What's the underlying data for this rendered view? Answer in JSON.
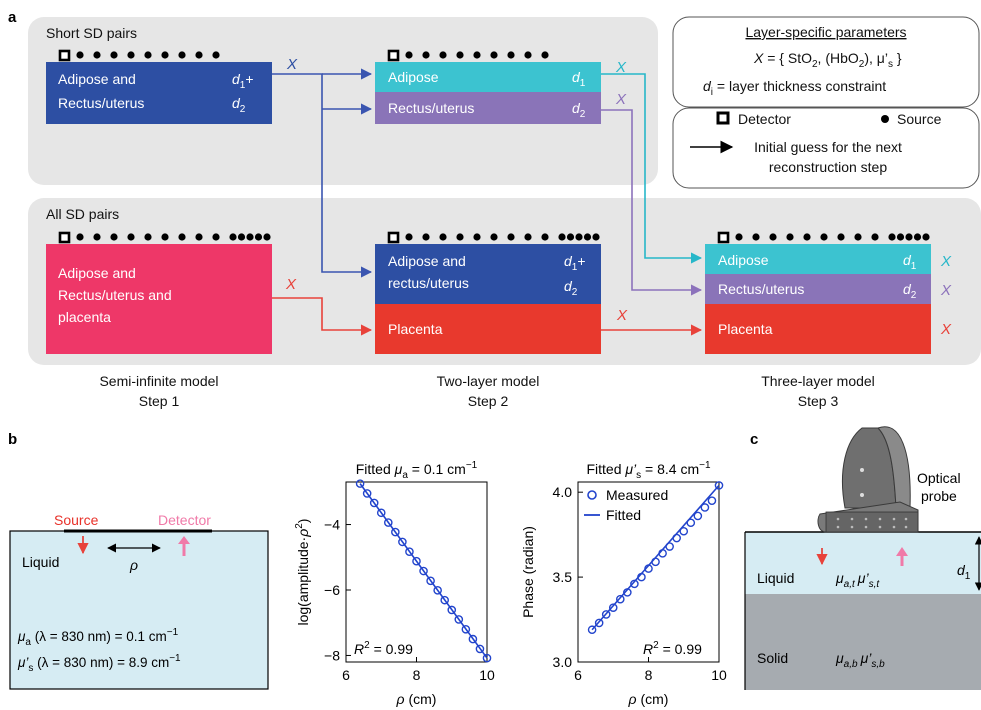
{
  "panel_a": {
    "label": "a",
    "short_group": "Short SD pairs",
    "all_group": "All SD pairs",
    "legend": {
      "title": "Layer-specific parameters",
      "x_label": "X",
      "x_eq": " = { StO",
      "x_mid": ", (HbO",
      "x_mid2": "), μ’",
      "x_end": " }",
      "sub2": "2",
      "sub_s": "s",
      "d_label": "d",
      "d_sub": "i",
      "d_eq": " =  layer thickness constraint",
      "detector": "Detector",
      "source": "Source",
      "arrow_line1": "Initial guess for the next",
      "arrow_line2": "reconstruction step"
    },
    "blocks": {
      "short_semi_line1": "Adipose and",
      "short_semi_line2": "Rectus/uterus",
      "d1": "d",
      "sub1": "1",
      "sub2": "2",
      "plus": "+",
      "adipose": "Adipose",
      "rectus": "Rectus/uterus",
      "semi_line1": "Adipose and",
      "semi_line2": "Rectus/uterus and",
      "semi_line3": "placenta",
      "two_line1": "Adipose and",
      "two_line2": "rectus/uterus",
      "placenta": "Placenta",
      "x": "X"
    },
    "captions": {
      "semi1": "Semi-infinite model",
      "semi2": "Step 1",
      "two1": "Two-layer model",
      "two2": "Step 2",
      "three1": "Three-layer model",
      "three2": "Step 3"
    }
  },
  "panel_b": {
    "label": "b",
    "source": "Source",
    "detector": "Detector",
    "liquid": "Liquid",
    "rho": "ρ",
    "mua_line": "μ",
    "mua_sub": "a",
    "mua_rest": " (λ = 830 nm) = 0.1 cm",
    "mus_line": "μ’",
    "mus_sub": "s",
    "mus_rest": " (λ = 830 nm) = 8.9 cm",
    "inv": "−1",
    "colors": {
      "source": "#e8322a",
      "detector": "#f07aa8",
      "liquid": "#d6ecf3",
      "series": "#2244cc"
    }
  },
  "chart_data": [
    {
      "type": "scatter",
      "title": "Fitted μa = 0.1 cm−1",
      "title_pre": "Fitted ",
      "title_mu": "μ",
      "title_sub": "a",
      "title_post": " = 0.1 cm",
      "title_sup": "−1",
      "xlabel": "ρ (cm)",
      "ylabel": "log(amplitude·ρ²)",
      "ylabel_pre": "log(amplitude·",
      "ylabel_rho": "ρ",
      "ylabel_sup": "2",
      "ylabel_post": ")",
      "xlim": [
        6,
        10
      ],
      "ylim": [
        -8.2,
        -2.7
      ],
      "xticks": [
        6,
        8,
        10
      ],
      "yticks": [
        -8,
        -6,
        -4
      ],
      "xtick_labels": [
        "6",
        "8",
        "10"
      ],
      "ytick_labels": [
        "−8",
        "−6",
        "−4"
      ],
      "annotation": "R² = 0.99",
      "ann_pre": "R",
      "ann_sup": "2",
      "ann_post": " = 0.99",
      "series": [
        {
          "values_x": [
            6.4,
            6.6,
            6.8,
            7.0,
            7.2,
            7.4,
            7.6,
            7.8,
            8.0,
            8.2,
            8.4,
            8.6,
            8.8,
            9.0,
            9.2,
            9.4,
            9.6,
            9.8,
            10.0
          ],
          "values_y": [
            -2.75,
            -3.05,
            -3.34,
            -3.64,
            -3.94,
            -4.23,
            -4.53,
            -4.83,
            -5.12,
            -5.42,
            -5.72,
            -6.01,
            -6.31,
            -6.61,
            -6.9,
            -7.2,
            -7.5,
            -7.8,
            -8.08
          ]
        }
      ],
      "fit": {
        "x": [
          6.4,
          10.0
        ],
        "y": [
          -2.75,
          -8.08
        ]
      }
    },
    {
      "type": "scatter",
      "title": "Fitted μ’s = 8.4 cm−1",
      "title_pre": "Fitted ",
      "title_mu": "μ’",
      "title_sub": "s",
      "title_post": " = 8.4 cm",
      "title_sup": "−1",
      "xlabel": "ρ (cm)",
      "ylabel": "Phase (radian)",
      "xlim": [
        6,
        10
      ],
      "ylim": [
        3.0,
        4.06
      ],
      "xticks": [
        6,
        8,
        10
      ],
      "yticks": [
        3.0,
        3.5,
        4.0
      ],
      "xtick_labels": [
        "6",
        "8",
        "10"
      ],
      "ytick_labels": [
        "3.0",
        "3.5",
        "4.0"
      ],
      "annotation": "R² = 0.99",
      "ann_pre": "R",
      "ann_sup": "2",
      "ann_post": " = 0.99",
      "legend": [
        "Measured",
        "Fitted"
      ],
      "series": [
        {
          "name": "Measured",
          "values_x": [
            6.4,
            6.6,
            6.8,
            7.0,
            7.2,
            7.4,
            7.6,
            7.8,
            8.0,
            8.2,
            8.4,
            8.6,
            8.8,
            9.0,
            9.2,
            9.4,
            9.6,
            9.8,
            10.0
          ],
          "values_y": [
            3.19,
            3.23,
            3.28,
            3.32,
            3.37,
            3.41,
            3.46,
            3.5,
            3.55,
            3.59,
            3.64,
            3.68,
            3.73,
            3.77,
            3.82,
            3.86,
            3.91,
            3.95,
            4.04
          ]
        }
      ],
      "fit": {
        "x": [
          6.4,
          10.0
        ],
        "y": [
          3.19,
          4.04
        ]
      }
    }
  ],
  "panel_c": {
    "label": "c",
    "probe1": "Optical",
    "probe2": "probe",
    "liquid": "Liquid",
    "solid": "Solid",
    "d1": "d",
    "d1_sub": "1",
    "mu": "μ",
    "mu_s": "μ’",
    "sub_at": "a,t",
    "sub_st": "s,t",
    "sub_ab": "a,b",
    "sub_sb": "s,b"
  }
}
